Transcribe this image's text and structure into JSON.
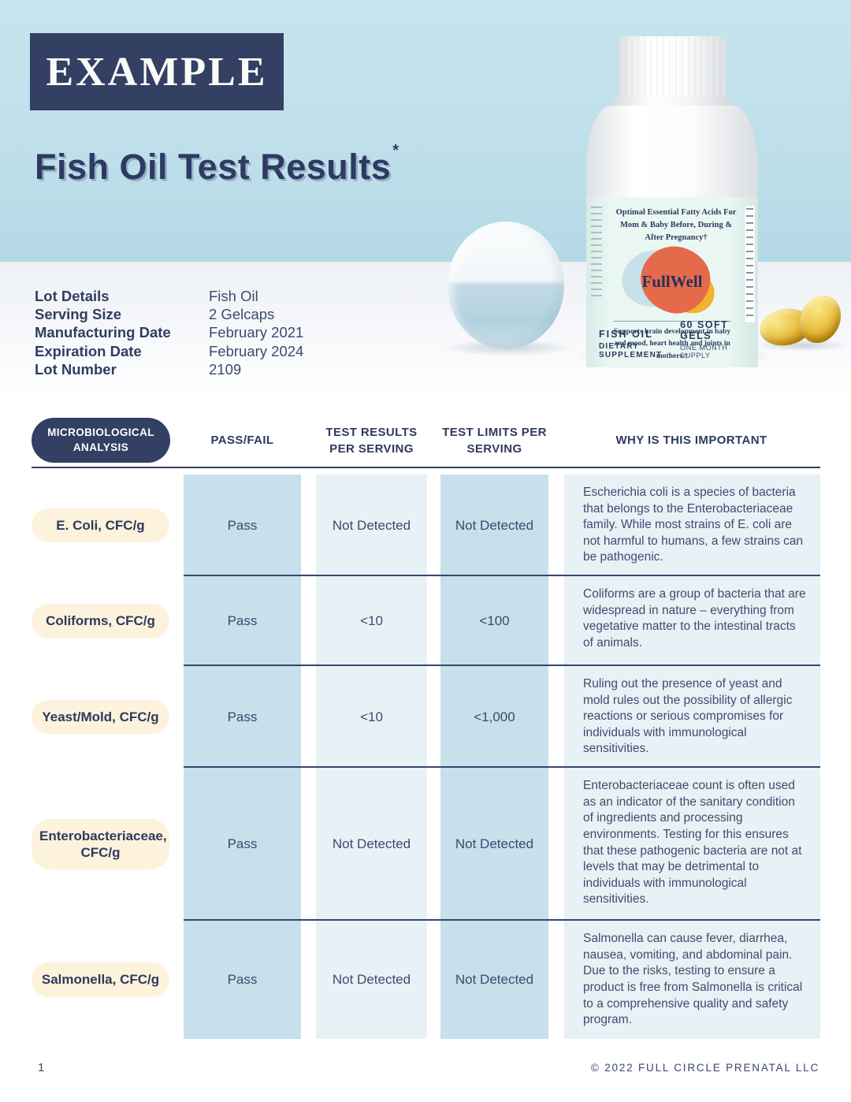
{
  "header": {
    "example_label": "EXAMPLE",
    "title": "Fish Oil Test Results",
    "title_mark": "*"
  },
  "product": {
    "tagline": "Optimal Essential Fatty Acids For Mom & Baby Before, During & After Pregnancy†",
    "brand": "FullWell",
    "support": "Supports brain development in baby and mood, heart health and joints in mothers.†",
    "type": "FISH OIL",
    "supplement": "DIETARY SUPPLEMENT",
    "count": "60 SOFT GELS",
    "supply": "ONE MONTH SUPPLY"
  },
  "lot_details": {
    "rows": [
      {
        "label": "Lot Details",
        "value": "Fish Oil"
      },
      {
        "label": "Serving Size",
        "value": "2 Gelcaps"
      },
      {
        "label": "Manufacturing Date",
        "value": "February 2021"
      },
      {
        "label": "Expiration Date",
        "value": "February 2024"
      },
      {
        "label": "Lot Number",
        "value": "2109"
      }
    ]
  },
  "table": {
    "headers": {
      "analysis": "MICROBIOLOGICAL ANALYSIS",
      "pass_fail": "PASS/FAIL",
      "results": "TEST RESULTS PER SERVING",
      "limits": "TEST LIMITS PER SERVING",
      "why": "WHY IS THIS IMPORTANT"
    },
    "rows": [
      {
        "analysis": "E. Coli, CFC/g",
        "pass_fail": "Pass",
        "result": "Not Detected",
        "limit": "Not Detected",
        "why": "Escherichia coli is a species of bacteria that belongs to the Enterobacteriaceae family. While most strains of E. coli are not harmful to humans, a few strains can be pathogenic."
      },
      {
        "analysis": "Coliforms, CFC/g",
        "pass_fail": "Pass",
        "result": "<10",
        "limit": "<100",
        "why": "Coliforms are a group of bacteria that are widespread in nature – everything from vegetative matter to the intestinal tracts of animals."
      },
      {
        "analysis": "Yeast/Mold, CFC/g",
        "pass_fail": "Pass",
        "result": "<10",
        "limit": "<1,000",
        "why": "Ruling out the presence of yeast and mold rules out the possibility of allergic reactions or serious compromises for individuals with immunological sensitivities."
      },
      {
        "analysis": "Enterobacteriaceae, CFC/g",
        "pass_fail": "Pass",
        "result": "Not Detected",
        "limit": "Not Detected",
        "why": "Enterobacteriaceae count is often used as an indicator of the sanitary condition of ingredients and processing environments. Testing for this ensures that these pathogenic bacteria are not at levels that may be detrimental to individuals with immunological sensitivities."
      },
      {
        "analysis": "Salmonella, CFC/g",
        "pass_fail": "Pass",
        "result": "Not Detected",
        "limit": "Not Detected",
        "why": "Salmonella can cause fever, diarrhea, nausea, vomiting, and abdominal pain. Due to the risks, testing to ensure a product is free from Salmonella is critical to a comprehensive quality and safety program."
      }
    ]
  },
  "footer": {
    "page_number": "1",
    "copyright": "© 2022 FULL CIRCLE PRENATAL LLC"
  },
  "colors": {
    "navy": "#333f63",
    "hero_blue": "#bedfea",
    "band_blue": "#c7e0eb",
    "band_light": "#e8f1f5",
    "cream_pill": "#fdf2dc",
    "logo_orange": "#e56a4b",
    "logo_yellow": "#f2b42c",
    "logo_blue": "#c7e1eb"
  }
}
